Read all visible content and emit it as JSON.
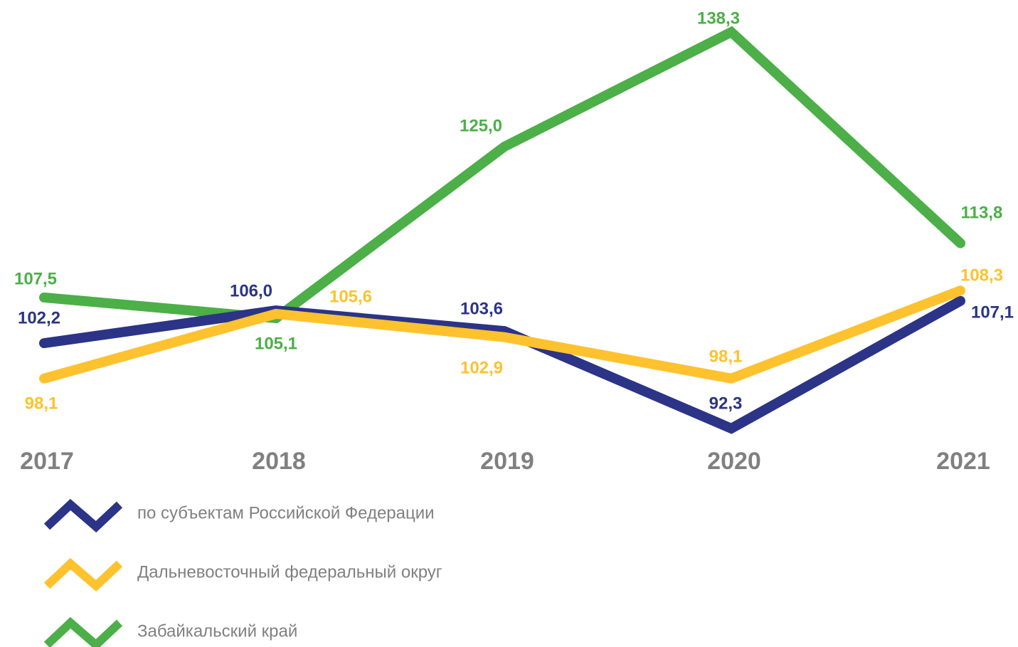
{
  "chart_data": {
    "type": "line",
    "categories": [
      "2017",
      "2018",
      "2019",
      "2020",
      "2021"
    ],
    "series": [
      {
        "name": "по субъектам Российской Федерации",
        "color": "#2b3486",
        "values": [
          102.2,
          106.0,
          103.6,
          92.3,
          107.1
        ],
        "value_labels": [
          "102,2",
          "106,0",
          "103,6",
          "92,3",
          "107,1"
        ]
      },
      {
        "name": "Дальневосточный федеральный округ",
        "color": "#fdc22e",
        "values": [
          98.1,
          105.6,
          102.9,
          98.1,
          108.3
        ],
        "value_labels": [
          "98,1",
          "105,6",
          "102,9",
          "98,1",
          "108,3"
        ]
      },
      {
        "name": "Забайкальский край",
        "color": "#4caf48",
        "values": [
          107.5,
          105.1,
          125.0,
          138.3,
          113.8
        ],
        "value_labels": [
          "107,5",
          "105,1",
          "125,0",
          "138,3",
          "113,8"
        ]
      }
    ]
  }
}
